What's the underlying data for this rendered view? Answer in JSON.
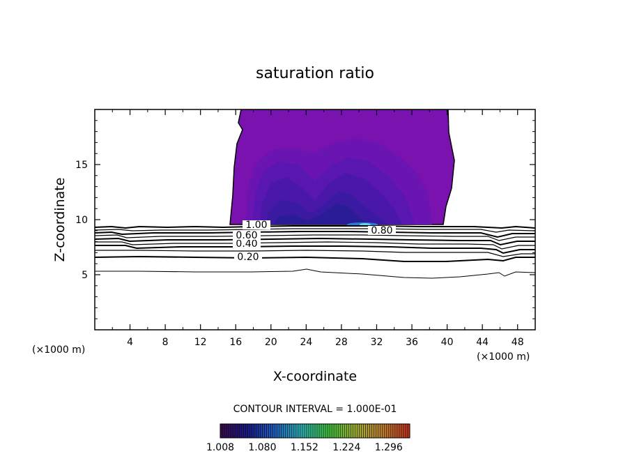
{
  "chart_data": {
    "type": "heatmap",
    "title": "saturation ratio",
    "xlabel": "X-coordinate",
    "ylabel": "Z-coordinate",
    "x_unit": "(×1000 m)",
    "x_unit_right": "(×1000 m)",
    "xlim": [
      0,
      50
    ],
    "ylim": [
      0,
      20
    ],
    "x_ticks": [
      "4",
      "8",
      "12",
      "16",
      "20",
      "24",
      "28",
      "32",
      "36",
      "40",
      "44",
      "48"
    ],
    "y_ticks": [
      "5",
      "10",
      "15"
    ],
    "contour_interval_text": "CONTOUR INTERVAL = 1.000E-01",
    "contour_levels": [
      {
        "label": "0.20",
        "z": 6.6
      },
      {
        "label": "0.40",
        "z": 7.8
      },
      {
        "label": "0.60",
        "z": 8.4
      },
      {
        "label": "0.80",
        "z": 8.9
      },
      {
        "label": "1.00",
        "z": 9.3
      }
    ],
    "colorbar": {
      "min": 1.008,
      "max": 1.332,
      "tick_labels": [
        "1.008",
        "1.080",
        "1.152",
        "1.224",
        "1.296"
      ],
      "colors": [
        "#3a0d4a",
        "#1a1a8a",
        "#2060c0",
        "#30b0b0",
        "#40c040",
        "#a0b030",
        "#c08030",
        "#c03020"
      ]
    },
    "cloud_region": {
      "x_range": [
        15,
        40
      ],
      "z_range": [
        9.3,
        20
      ],
      "fill": "#7a12b0"
    },
    "grid": false
  }
}
